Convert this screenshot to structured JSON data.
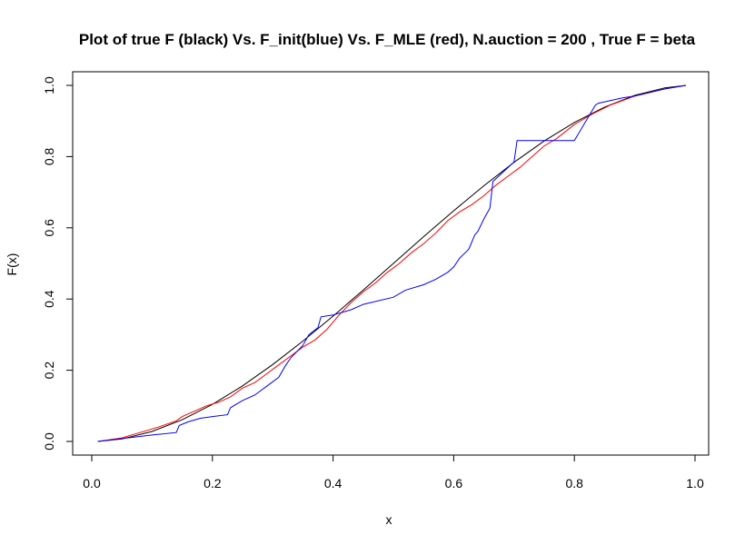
{
  "chart_data": {
    "type": "line",
    "title": "Plot of true F (black) Vs. F_init(blue) Vs. F_MLE (red), N.auction = 200 , True F = beta",
    "xlabel": "x",
    "ylabel": "F(x)",
    "xlim": [
      0.0,
      1.0
    ],
    "ylim": [
      0.0,
      1.0
    ],
    "x_ticks": [
      "0.0",
      "0.2",
      "0.4",
      "0.6",
      "0.8",
      "1.0"
    ],
    "y_ticks": [
      "0.0",
      "0.2",
      "0.4",
      "0.6",
      "0.8",
      "1.0"
    ],
    "grid": false,
    "legend": "none",
    "series": [
      {
        "color": "#000000",
        "x": [
          0.01,
          0.05,
          0.1,
          0.15,
          0.2,
          0.25,
          0.3,
          0.35,
          0.4,
          0.45,
          0.5,
          0.55,
          0.6,
          0.65,
          0.7,
          0.75,
          0.8,
          0.85,
          0.9,
          0.95,
          0.985
        ],
        "y": [
          0.0,
          0.007,
          0.028,
          0.061,
          0.104,
          0.156,
          0.216,
          0.282,
          0.352,
          0.425,
          0.5,
          0.575,
          0.648,
          0.718,
          0.784,
          0.844,
          0.896,
          0.939,
          0.972,
          0.993,
          1.0
        ]
      },
      {
        "color": "#ff0000",
        "x": [
          0.01,
          0.05,
          0.08,
          0.11,
          0.14,
          0.15,
          0.17,
          0.19,
          0.21,
          0.23,
          0.25,
          0.27,
          0.29,
          0.31,
          0.33,
          0.35,
          0.37,
          0.39,
          0.41,
          0.43,
          0.45,
          0.47,
          0.49,
          0.51,
          0.53,
          0.55,
          0.57,
          0.59,
          0.61,
          0.63,
          0.65,
          0.67,
          0.69,
          0.71,
          0.73,
          0.75,
          0.77,
          0.8,
          0.83,
          0.86,
          0.9,
          0.95,
          0.985
        ],
        "y": [
          0.0,
          0.01,
          0.025,
          0.04,
          0.058,
          0.07,
          0.085,
          0.1,
          0.11,
          0.125,
          0.15,
          0.165,
          0.19,
          0.215,
          0.24,
          0.265,
          0.285,
          0.315,
          0.355,
          0.39,
          0.42,
          0.445,
          0.475,
          0.5,
          0.53,
          0.555,
          0.585,
          0.62,
          0.645,
          0.665,
          0.69,
          0.72,
          0.745,
          0.77,
          0.8,
          0.83,
          0.85,
          0.89,
          0.92,
          0.945,
          0.97,
          0.99,
          1.0
        ]
      },
      {
        "color": "#0000ff",
        "x": [
          0.01,
          0.05,
          0.1,
          0.14,
          0.145,
          0.16,
          0.18,
          0.2,
          0.225,
          0.23,
          0.25,
          0.27,
          0.29,
          0.31,
          0.32,
          0.33,
          0.35,
          0.36,
          0.375,
          0.38,
          0.4,
          0.43,
          0.45,
          0.5,
          0.52,
          0.55,
          0.57,
          0.58,
          0.59,
          0.6,
          0.61,
          0.625,
          0.63,
          0.635,
          0.64,
          0.65,
          0.66,
          0.665,
          0.7,
          0.705,
          0.8,
          0.835,
          0.84,
          0.88,
          0.9,
          0.95,
          0.985
        ],
        "y": [
          0.0,
          0.008,
          0.018,
          0.025,
          0.045,
          0.055,
          0.065,
          0.07,
          0.075,
          0.095,
          0.115,
          0.13,
          0.155,
          0.18,
          0.21,
          0.235,
          0.27,
          0.3,
          0.32,
          0.35,
          0.355,
          0.37,
          0.385,
          0.405,
          0.425,
          0.44,
          0.455,
          0.465,
          0.475,
          0.49,
          0.515,
          0.54,
          0.56,
          0.58,
          0.59,
          0.625,
          0.655,
          0.73,
          0.785,
          0.845,
          0.845,
          0.945,
          0.95,
          0.965,
          0.97,
          0.99,
          1.0
        ]
      }
    ]
  }
}
